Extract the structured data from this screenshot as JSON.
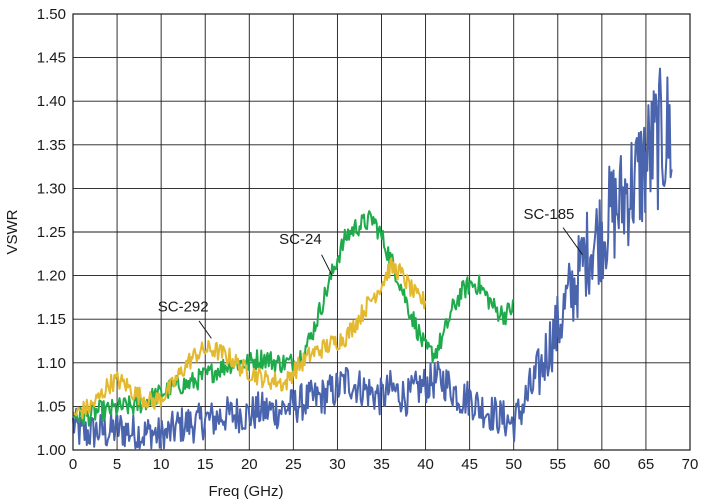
{
  "chart_data": {
    "type": "line",
    "title": "",
    "xlabel": "Freq (GHz)",
    "ylabel": "VSWR",
    "xlim": [
      0,
      70
    ],
    "ylim": [
      1.0,
      1.5
    ],
    "xticks": [
      "0",
      "5",
      "10",
      "15",
      "20",
      "25",
      "30",
      "35",
      "40",
      "45",
      "50",
      "55",
      "60",
      "65",
      "70"
    ],
    "yticks": [
      "1.00",
      "1.05",
      "1.10",
      "1.15",
      "1.20",
      "1.25",
      "1.30",
      "1.35",
      "1.40",
      "1.45",
      "1.50"
    ],
    "grid": true,
    "legend": "none",
    "series": [
      {
        "name": "SC-185",
        "color": "#4a64ad",
        "x": [
          0,
          1,
          2,
          3,
          4,
          5,
          6,
          7,
          8,
          9,
          10,
          11,
          12,
          13,
          14,
          15,
          16,
          17,
          18,
          19,
          20,
          21,
          22,
          23,
          24,
          25,
          26,
          27,
          28,
          29,
          30,
          31,
          32,
          33,
          34,
          35,
          36,
          37,
          38,
          39,
          40,
          41,
          42,
          43,
          44,
          45,
          46,
          47,
          48,
          49,
          50,
          51,
          52,
          53,
          54,
          55,
          56,
          57,
          58,
          59,
          60,
          61,
          62,
          63,
          64,
          65,
          66,
          67,
          68
        ],
        "y": [
          1.03,
          1.018,
          1.02,
          1.022,
          1.02,
          1.025,
          1.022,
          1.02,
          1.018,
          1.02,
          1.015,
          1.02,
          1.028,
          1.03,
          1.03,
          1.035,
          1.035,
          1.04,
          1.04,
          1.042,
          1.04,
          1.045,
          1.045,
          1.045,
          1.048,
          1.05,
          1.055,
          1.058,
          1.06,
          1.065,
          1.07,
          1.08,
          1.075,
          1.07,
          1.065,
          1.06,
          1.07,
          1.065,
          1.06,
          1.07,
          1.075,
          1.08,
          1.08,
          1.07,
          1.06,
          1.06,
          1.05,
          1.045,
          1.04,
          1.035,
          1.03,
          1.05,
          1.07,
          1.09,
          1.12,
          1.14,
          1.17,
          1.19,
          1.22,
          1.24,
          1.25,
          1.27,
          1.28,
          1.3,
          1.31,
          1.33,
          1.35,
          1.36,
          1.36
        ]
      },
      {
        "name": "SC-24",
        "color": "#1faa4b",
        "x": [
          0,
          1,
          2,
          3,
          4,
          5,
          6,
          7,
          8,
          9,
          10,
          11,
          12,
          13,
          14,
          15,
          16,
          17,
          18,
          19,
          20,
          21,
          22,
          23,
          24,
          25,
          26,
          27,
          28,
          29,
          30,
          31,
          32,
          33,
          34,
          35,
          36,
          37,
          38,
          39,
          40,
          41,
          42,
          43,
          44,
          45,
          46,
          47,
          48,
          49,
          50
        ],
        "y": [
          1.04,
          1.038,
          1.04,
          1.045,
          1.045,
          1.048,
          1.05,
          1.05,
          1.055,
          1.06,
          1.065,
          1.07,
          1.075,
          1.075,
          1.08,
          1.085,
          1.09,
          1.095,
          1.1,
          1.1,
          1.1,
          1.105,
          1.105,
          1.1,
          1.1,
          1.1,
          1.11,
          1.13,
          1.16,
          1.19,
          1.22,
          1.245,
          1.255,
          1.26,
          1.265,
          1.245,
          1.22,
          1.195,
          1.165,
          1.14,
          1.115,
          1.11,
          1.13,
          1.16,
          1.18,
          1.19,
          1.19,
          1.175,
          1.16,
          1.155,
          1.165
        ]
      },
      {
        "name": "SC-292",
        "color": "#e3b92f",
        "x": [
          0,
          1,
          2,
          3,
          4,
          5,
          6,
          7,
          8,
          9,
          10,
          11,
          12,
          13,
          14,
          15,
          16,
          17,
          18,
          19,
          20,
          21,
          22,
          23,
          24,
          25,
          26,
          27,
          28,
          29,
          30,
          31,
          32,
          33,
          34,
          35,
          36,
          37,
          38,
          39,
          40
        ],
        "y": [
          1.04,
          1.045,
          1.05,
          1.06,
          1.075,
          1.08,
          1.075,
          1.065,
          1.06,
          1.055,
          1.06,
          1.07,
          1.085,
          1.1,
          1.11,
          1.115,
          1.115,
          1.11,
          1.105,
          1.095,
          1.09,
          1.085,
          1.08,
          1.08,
          1.075,
          1.09,
          1.1,
          1.11,
          1.115,
          1.12,
          1.125,
          1.13,
          1.145,
          1.16,
          1.175,
          1.19,
          1.21,
          1.205,
          1.19,
          1.175,
          1.17
        ]
      }
    ],
    "annotations": [
      {
        "text": "SC-185",
        "series": "SC-185",
        "label_at": [
          58,
          1.278
        ],
        "point_at": [
          57.9,
          1.278
        ]
      },
      {
        "text": "SC-24",
        "series": "SC-24",
        "label_at": [
          26,
          1.23
        ],
        "point_at": [
          29.5,
          1.198
        ]
      },
      {
        "text": "SC-292",
        "series": "SC-292",
        "label_at": [
          13,
          1.16
        ],
        "point_at": [
          15.5,
          1.128
        ]
      }
    ]
  }
}
